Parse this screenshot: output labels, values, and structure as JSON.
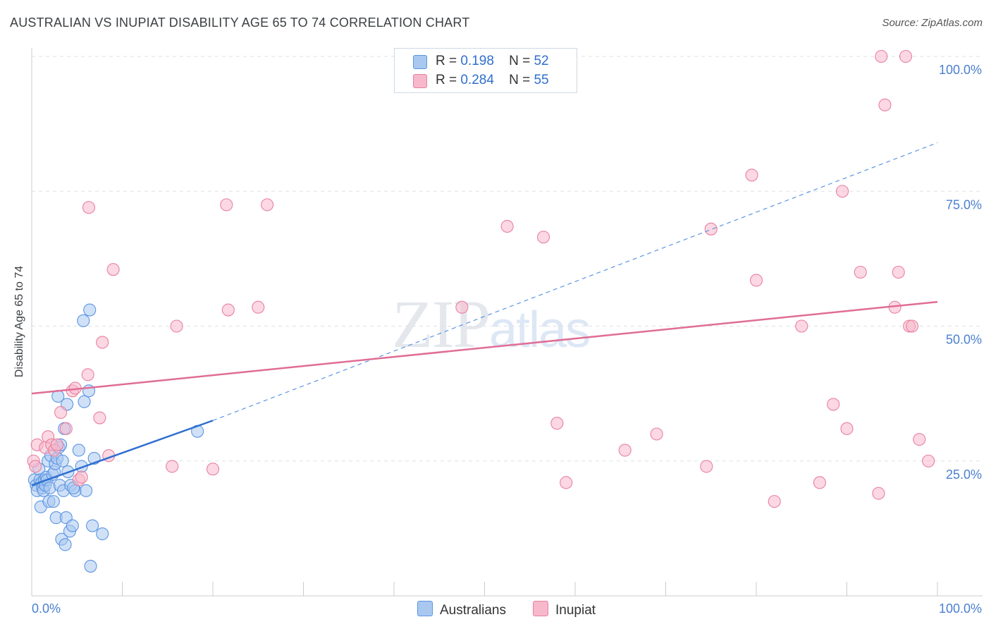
{
  "title": "AUSTRALIAN VS INUPIAT DISABILITY AGE 65 TO 74 CORRELATION CHART",
  "source": "Source: ZipAtlas.com",
  "watermark": {
    "zip": "ZIP",
    "atlas": "atlas"
  },
  "legend_top": [
    {
      "r_label": "R =",
      "r_value": "0.198",
      "n_label": "N =",
      "n_value": "52",
      "color": "#a9c8f0"
    },
    {
      "r_label": "R =",
      "r_value": "0.284",
      "n_label": "N =",
      "n_value": "55",
      "color": "#f7b8cc"
    }
  ],
  "chart_data": {
    "type": "scatter",
    "ylabel": "Disability Age 65 to 74",
    "x_range": [
      0,
      100
    ],
    "y_range": [
      0,
      100
    ],
    "x_tick_labels": [
      "0.0%",
      "100.0%"
    ],
    "y_ticks": [
      25,
      50,
      75,
      100
    ],
    "y_tick_labels": [
      "25.0%",
      "50.0%",
      "75.0%",
      "100.0%"
    ],
    "grid": "horizontal dashed",
    "legend_position": "bottom-center",
    "series": [
      {
        "name": "Australians",
        "color": "#5b95e3",
        "fill": "#a9c8f0",
        "trend": {
          "x": [
            0,
            20
          ],
          "y": [
            20.5,
            32.5
          ],
          "dashed_to": [
            100,
            84
          ]
        },
        "points": [
          [
            0.3,
            21.5
          ],
          [
            0.5,
            20.5
          ],
          [
            0.6,
            19.5
          ],
          [
            0.8,
            23.5
          ],
          [
            0.9,
            21.5
          ],
          [
            1.0,
            16.5
          ],
          [
            1.1,
            21
          ],
          [
            1.2,
            20
          ],
          [
            1.3,
            19.5
          ],
          [
            1.4,
            21.5
          ],
          [
            1.5,
            20.5
          ],
          [
            1.6,
            22
          ],
          [
            1.7,
            21.5
          ],
          [
            1.8,
            25
          ],
          [
            1.9,
            17.5
          ],
          [
            2.0,
            20
          ],
          [
            2.1,
            26
          ],
          [
            2.3,
            22.5
          ],
          [
            2.4,
            17.5
          ],
          [
            2.5,
            23
          ],
          [
            2.6,
            24.5
          ],
          [
            2.7,
            14.5
          ],
          [
            2.8,
            25.5
          ],
          [
            2.9,
            37
          ],
          [
            3.0,
            27.5
          ],
          [
            3.1,
            20.5
          ],
          [
            3.2,
            28
          ],
          [
            3.3,
            10.5
          ],
          [
            3.4,
            25
          ],
          [
            3.5,
            19.5
          ],
          [
            3.6,
            31
          ],
          [
            3.7,
            9.5
          ],
          [
            3.8,
            14.5
          ],
          [
            3.9,
            35.5
          ],
          [
            4.0,
            23
          ],
          [
            4.2,
            12
          ],
          [
            4.3,
            20.5
          ],
          [
            4.5,
            13
          ],
          [
            4.8,
            19.5
          ],
          [
            5.2,
            27
          ],
          [
            5.5,
            24
          ],
          [
            5.7,
            51
          ],
          [
            5.8,
            36
          ],
          [
            6.0,
            19.5
          ],
          [
            6.3,
            38
          ],
          [
            6.4,
            53
          ],
          [
            6.5,
            5.5
          ],
          [
            6.7,
            13
          ],
          [
            6.9,
            25.5
          ],
          [
            7.8,
            11.5
          ],
          [
            18.3,
            30.5
          ],
          [
            4.6,
            20
          ]
        ]
      },
      {
        "name": "Inupiat",
        "color": "#e8809f",
        "fill": "#f7b8cc",
        "trend": {
          "x": [
            0,
            100
          ],
          "y": [
            37.5,
            54.5
          ]
        },
        "points": [
          [
            0.2,
            25
          ],
          [
            0.4,
            24
          ],
          [
            0.6,
            28
          ],
          [
            1.5,
            27.5
          ],
          [
            1.8,
            29.5
          ],
          [
            2.2,
            28
          ],
          [
            2.5,
            27
          ],
          [
            2.8,
            28
          ],
          [
            3.2,
            34
          ],
          [
            3.8,
            31
          ],
          [
            4.5,
            38
          ],
          [
            4.8,
            38.5
          ],
          [
            5.2,
            21.5
          ],
          [
            5.5,
            22
          ],
          [
            6.2,
            41
          ],
          [
            6.3,
            72
          ],
          [
            7.5,
            33
          ],
          [
            7.8,
            47
          ],
          [
            8.5,
            26
          ],
          [
            9.0,
            60.5
          ],
          [
            15.5,
            24
          ],
          [
            16.0,
            50
          ],
          [
            20.0,
            23.5
          ],
          [
            21.5,
            72.5
          ],
          [
            21.7,
            53
          ],
          [
            26.0,
            72.5
          ],
          [
            25.0,
            53.5
          ],
          [
            47.5,
            53.5
          ],
          [
            52.5,
            68.5
          ],
          [
            56.5,
            66.5
          ],
          [
            58.0,
            32
          ],
          [
            59.0,
            21
          ],
          [
            65.5,
            27
          ],
          [
            69.0,
            30
          ],
          [
            74.5,
            24
          ],
          [
            75.0,
            68
          ],
          [
            79.5,
            78
          ],
          [
            80.0,
            58.5
          ],
          [
            82.0,
            17.5
          ],
          [
            85.0,
            50
          ],
          [
            87.0,
            21
          ],
          [
            88.5,
            35.5
          ],
          [
            89.5,
            75
          ],
          [
            90.0,
            31
          ],
          [
            91.5,
            60
          ],
          [
            93.5,
            19
          ],
          [
            93.8,
            100
          ],
          [
            94.2,
            91
          ],
          [
            95.3,
            53.5
          ],
          [
            95.7,
            60
          ],
          [
            96.5,
            100
          ],
          [
            96.9,
            50
          ],
          [
            97.2,
            50
          ],
          [
            98.0,
            29
          ],
          [
            99.0,
            25
          ]
        ]
      }
    ]
  }
}
